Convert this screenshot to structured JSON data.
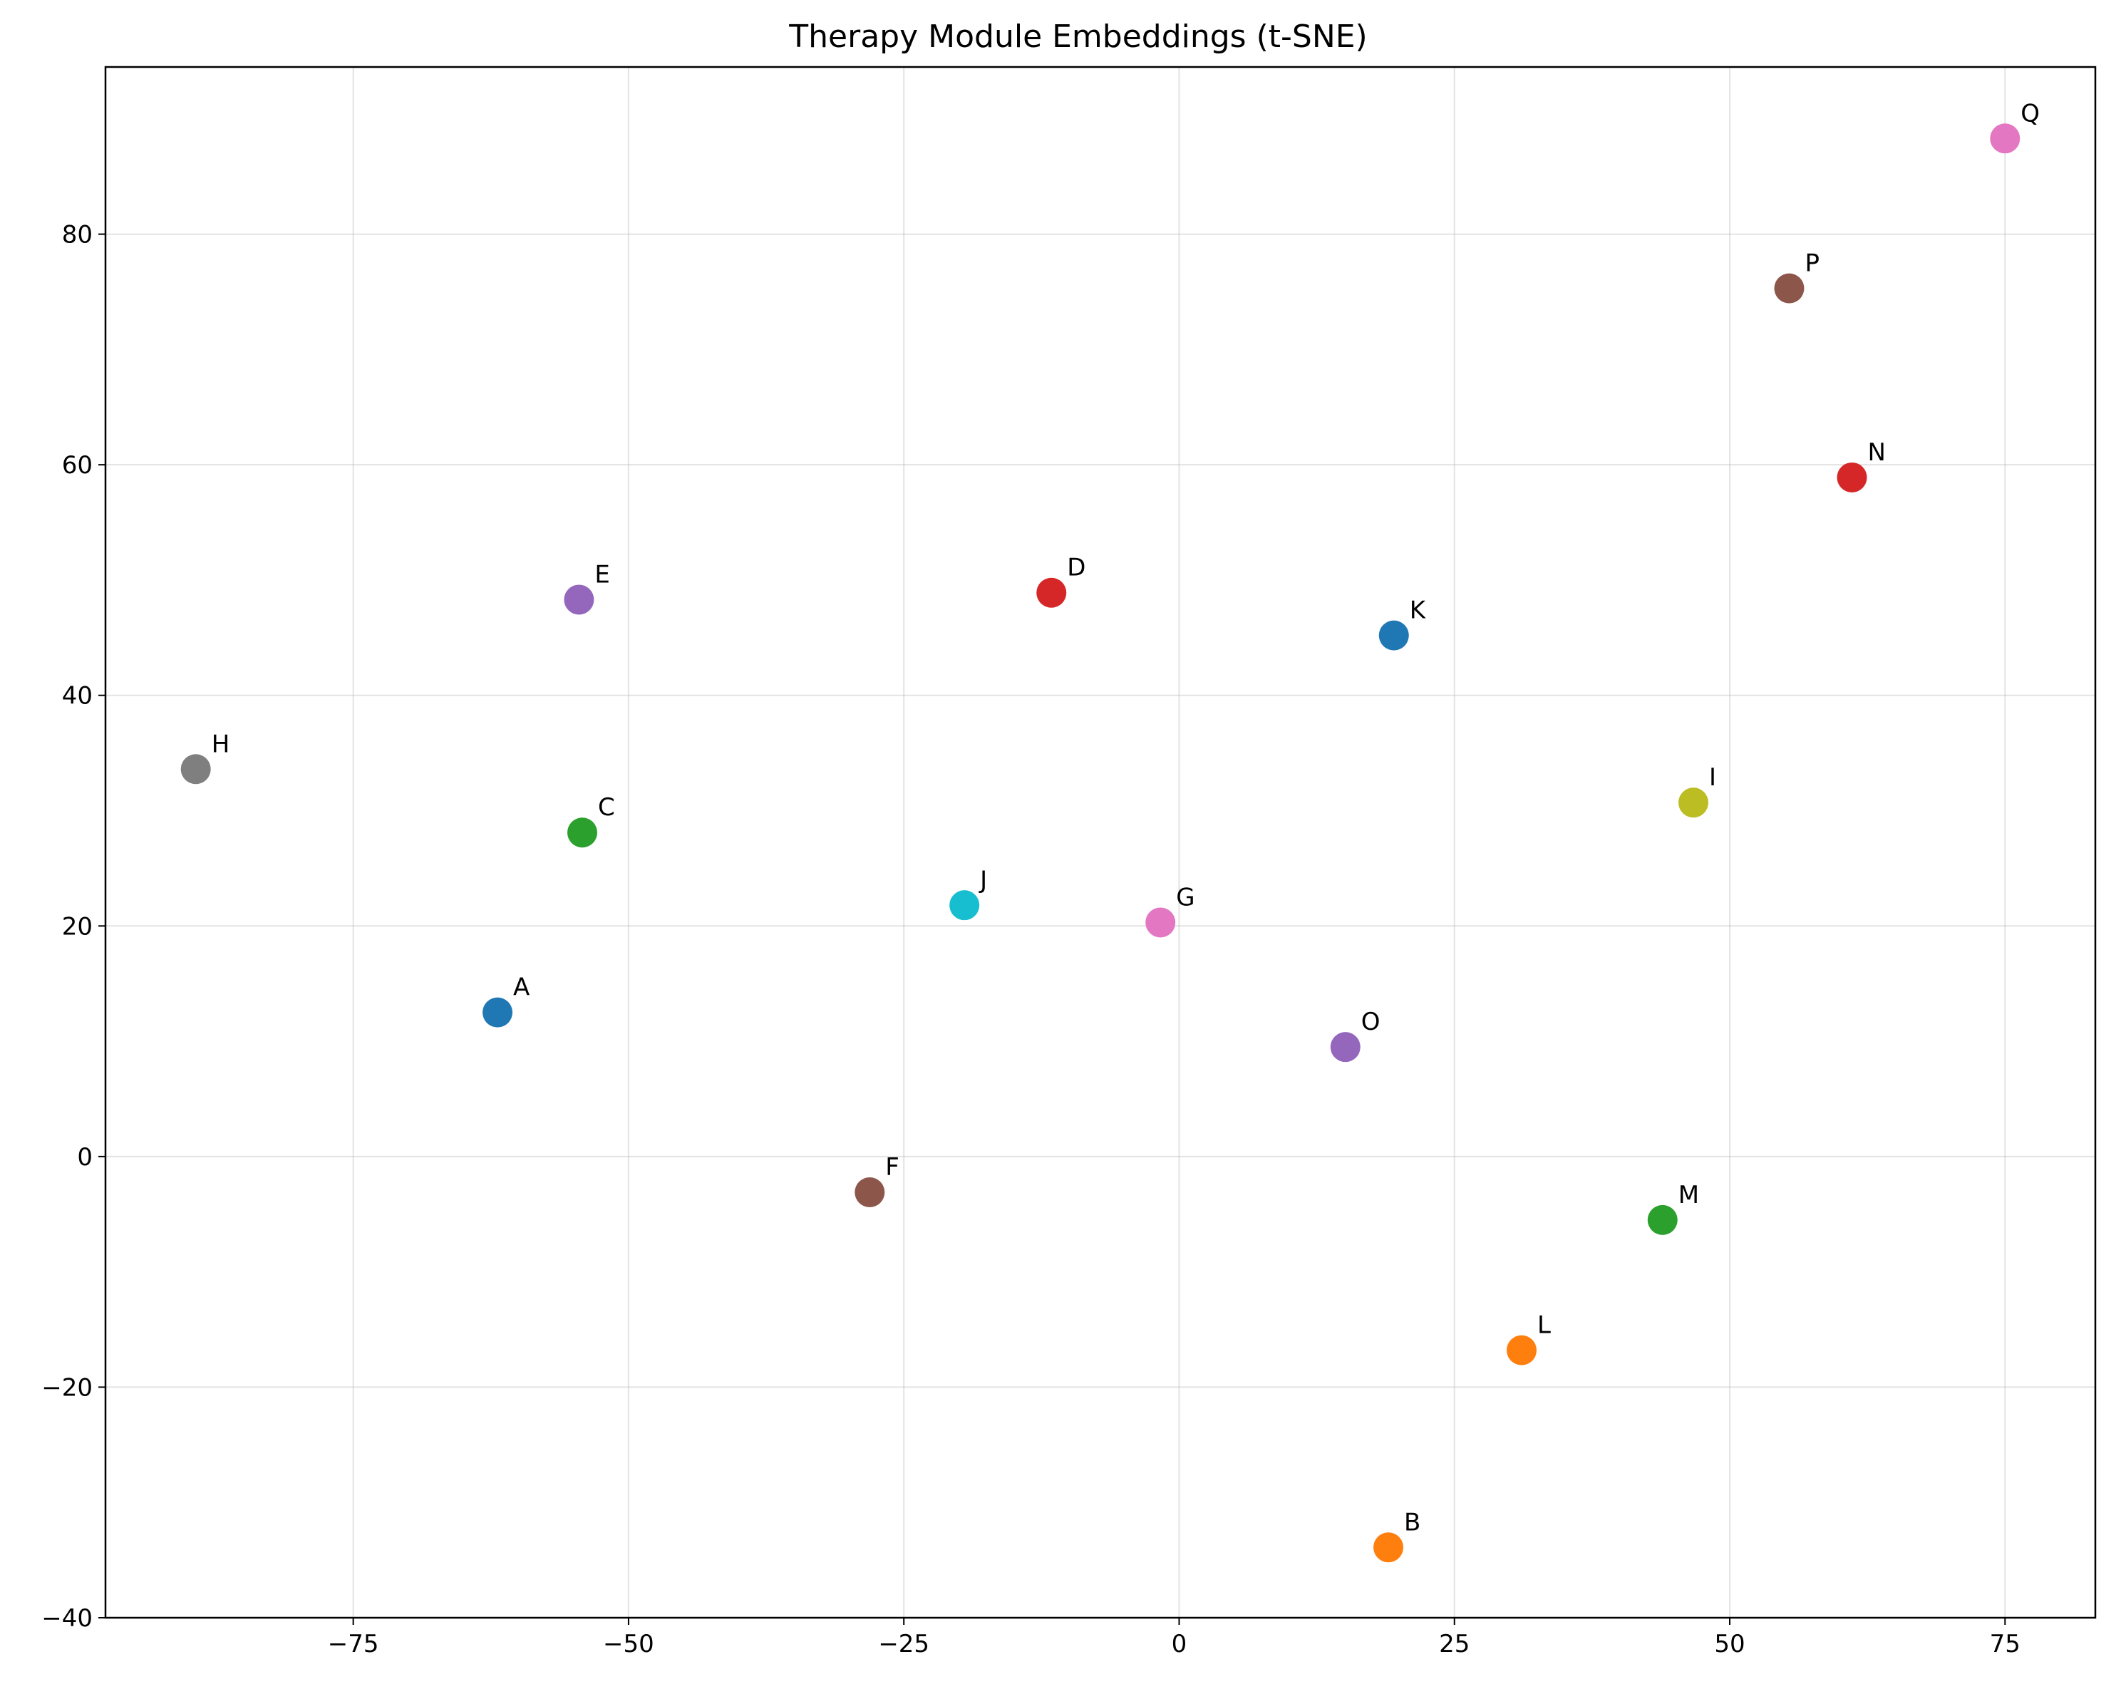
{
  "chart_data": {
    "type": "scatter",
    "title": "Therapy Module Embeddings (t-SNE)",
    "xlabel": "",
    "ylabel": "",
    "xlim": [
      -97.5,
      83.2
    ],
    "ylim": [
      -40,
      94.5
    ],
    "xticks": [
      -75,
      -50,
      -25,
      0,
      25,
      50,
      75
    ],
    "xtick_labels": [
      "−75",
      "−50",
      "−25",
      "0",
      "25",
      "50",
      "75"
    ],
    "yticks": [
      -40,
      -20,
      0,
      20,
      40,
      60,
      80
    ],
    "ytick_labels": [
      "−40",
      "−20",
      "0",
      "20",
      "40",
      "60",
      "80"
    ],
    "grid": true,
    "points": [
      {
        "label": "A",
        "x": -61.9,
        "y": 12.5,
        "color": "#1f77b4"
      },
      {
        "label": "B",
        "x": 19.0,
        "y": -33.9,
        "color": "#ff7f0e"
      },
      {
        "label": "C",
        "x": -54.2,
        "y": 28.1,
        "color": "#2ca02c"
      },
      {
        "label": "D",
        "x": -11.6,
        "y": 48.9,
        "color": "#d62728"
      },
      {
        "label": "E",
        "x": -54.5,
        "y": 48.3,
        "color": "#9467bd"
      },
      {
        "label": "F",
        "x": -28.1,
        "y": -3.1,
        "color": "#8c564b"
      },
      {
        "label": "G",
        "x": -1.7,
        "y": 20.3,
        "color": "#e377c2"
      },
      {
        "label": "H",
        "x": -89.3,
        "y": 33.6,
        "color": "#7f7f7f"
      },
      {
        "label": "I",
        "x": 46.7,
        "y": 30.7,
        "color": "#bcbd22"
      },
      {
        "label": "J",
        "x": -19.5,
        "y": 21.8,
        "color": "#17becf"
      },
      {
        "label": "K",
        "x": 19.5,
        "y": 45.2,
        "color": "#1f77b4"
      },
      {
        "label": "L",
        "x": 31.1,
        "y": -16.8,
        "color": "#ff7f0e"
      },
      {
        "label": "M",
        "x": 43.9,
        "y": -5.5,
        "color": "#2ca02c"
      },
      {
        "label": "N",
        "x": 61.1,
        "y": 58.9,
        "color": "#d62728"
      },
      {
        "label": "O",
        "x": 15.1,
        "y": 9.5,
        "color": "#9467bd"
      },
      {
        "label": "P",
        "x": 55.4,
        "y": 75.3,
        "color": "#8c564b"
      },
      {
        "label": "Q",
        "x": 75.0,
        "y": 88.3,
        "color": "#e377c2"
      }
    ]
  }
}
